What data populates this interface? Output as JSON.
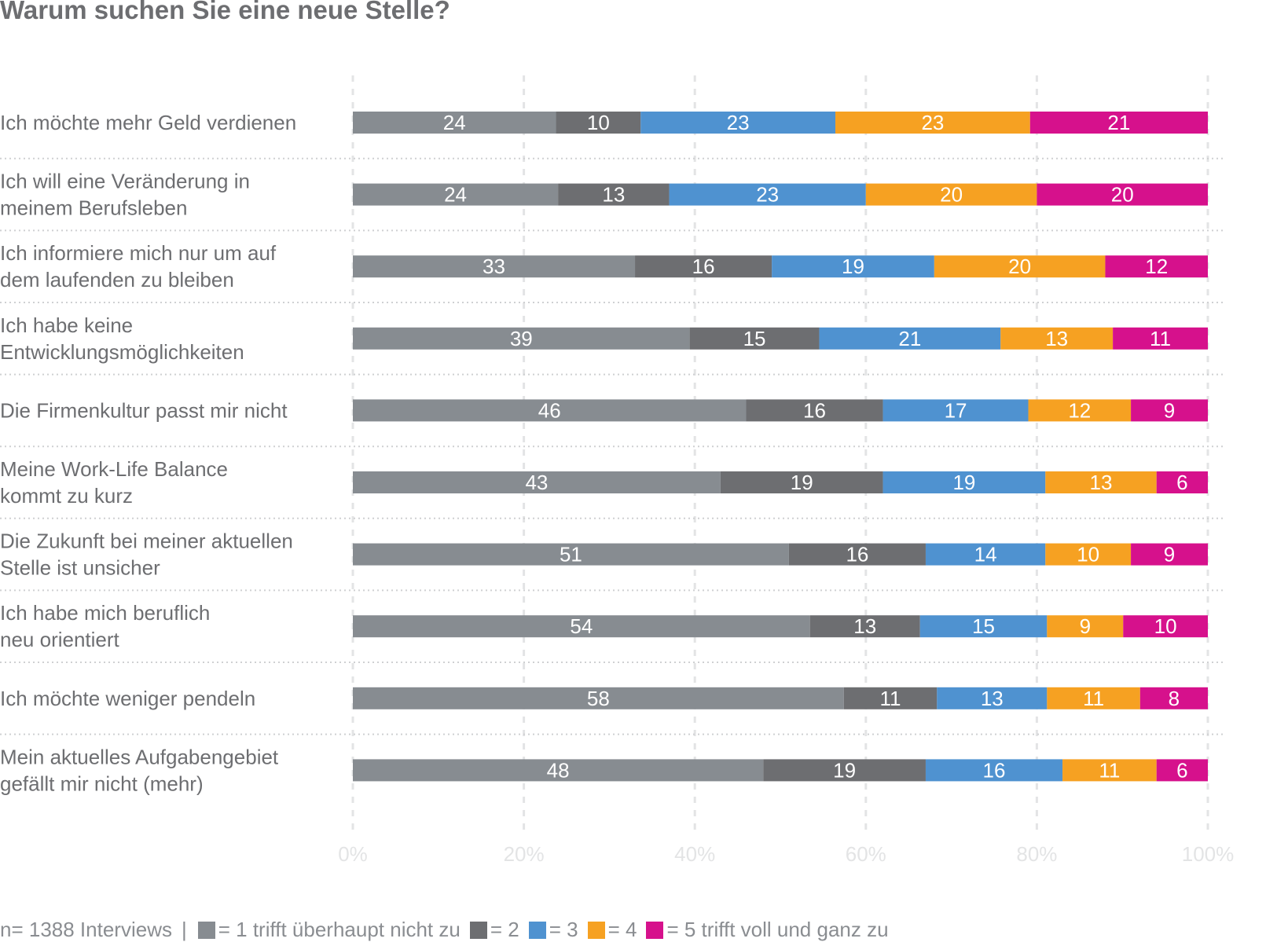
{
  "title": "Warum suchen Sie eine neue Stelle?",
  "footnote": "n= 1388 Interviews",
  "legend_separator": "|",
  "legend": [
    {
      "label": "= 1 trifft überhaupt nicht zu",
      "color": "#878c91"
    },
    {
      "label": "= 2",
      "color": "#6d6e71"
    },
    {
      "label": "= 3",
      "color": "#4f92d0"
    },
    {
      "label": "= 4",
      "color": "#f6a122"
    },
    {
      "label": "= 5 trifft voll und ganz zu",
      "color": "#d6118c"
    }
  ],
  "chart_data": {
    "type": "bar",
    "orientation": "horizontal",
    "stacked": true,
    "title": "Warum suchen Sie eine neue Stelle?",
    "categories": [
      [
        "Ich möchte mehr Geld verdienen"
      ],
      [
        "Ich will eine Veränderung in",
        "meinem Berufsleben"
      ],
      [
        "Ich informiere mich nur um auf",
        "dem laufenden zu bleiben"
      ],
      [
        "Ich habe keine",
        "Entwicklungsmöglichkeiten"
      ],
      [
        "Die Firmenkultur passt mir nicht"
      ],
      [
        "Meine Work-Life Balance",
        "kommt zu kurz"
      ],
      [
        "Die Zukunft bei meiner aktuellen",
        "Stelle ist unsicher"
      ],
      [
        "Ich habe mich beruflich",
        "neu orientiert"
      ],
      [
        "Ich möchte weniger pendeln"
      ],
      [
        "Mein aktuelles Aufgabengebiet",
        "gefällt mir nicht (mehr)"
      ]
    ],
    "series": [
      {
        "name": "= 1 trifft überhaupt nicht zu",
        "color": "#878c91",
        "values": [
          24,
          24,
          33,
          39,
          46,
          43,
          51,
          54,
          58,
          48
        ]
      },
      {
        "name": "= 2",
        "color": "#6d6e71",
        "values": [
          10,
          13,
          16,
          15,
          16,
          19,
          16,
          13,
          11,
          19
        ]
      },
      {
        "name": "= 3",
        "color": "#4f92d0",
        "values": [
          23,
          23,
          19,
          21,
          17,
          19,
          14,
          15,
          13,
          16
        ]
      },
      {
        "name": "= 4",
        "color": "#f6a122",
        "values": [
          23,
          20,
          20,
          13,
          12,
          13,
          10,
          9,
          11,
          11
        ]
      },
      {
        "name": "= 5 trifft voll und ganz zu",
        "color": "#d6118c",
        "values": [
          21,
          20,
          12,
          11,
          9,
          6,
          9,
          10,
          8,
          6
        ]
      }
    ],
    "x_ticks": [
      "0%",
      "20%",
      "40%",
      "60%",
      "80%",
      "100%"
    ],
    "xlim": [
      0,
      100
    ],
    "grid": true,
    "legend_position": "bottom"
  }
}
